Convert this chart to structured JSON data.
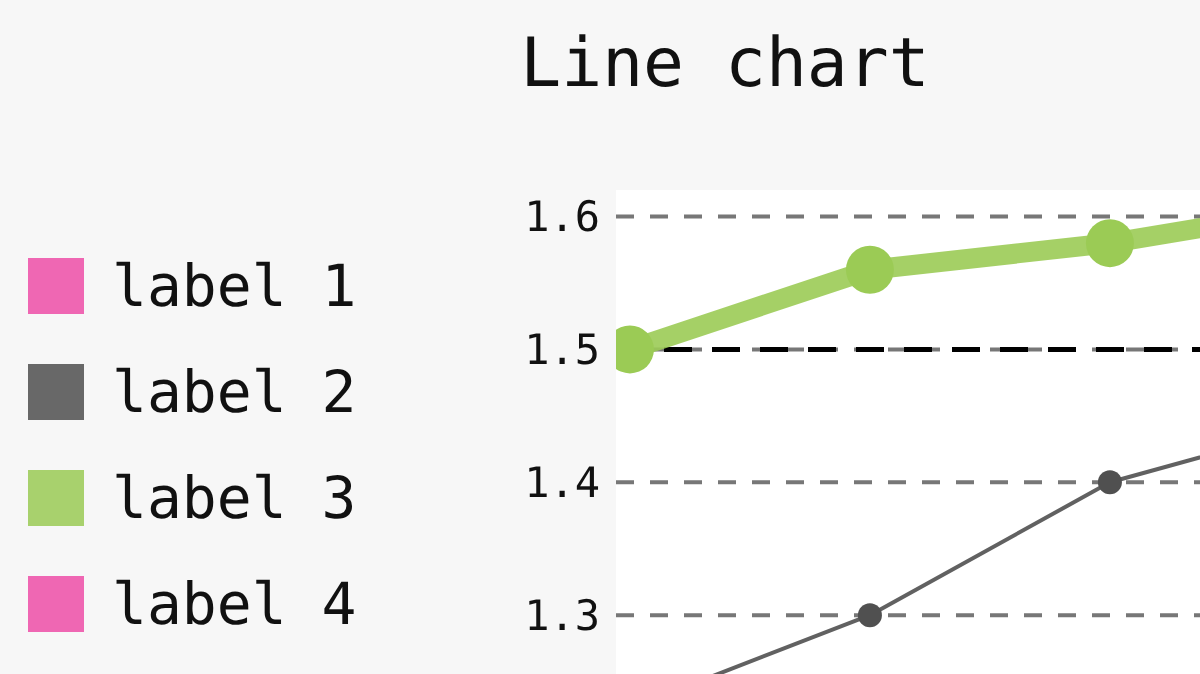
{
  "chart_data": {
    "type": "line",
    "title": "Line chart",
    "categories": [
      null,
      null,
      null,
      null
    ],
    "series": [
      {
        "name": "label 1",
        "color": "#ee4fa8",
        "values": [
          null,
          null,
          null,
          null
        ]
      },
      {
        "name": "label 2",
        "color": "#505050",
        "values": [
          1.23,
          1.3,
          1.4,
          1.45
        ]
      },
      {
        "name": "label 3",
        "color": "#9bcb55",
        "values": [
          1.5,
          1.56,
          1.58,
          1.61
        ]
      },
      {
        "name": "label 4",
        "color": "#ee4fa8",
        "values": [
          null,
          null,
          null,
          null
        ]
      }
    ],
    "ylim": [
      1.2,
      1.62
    ],
    "yticks": [
      1.3,
      1.4,
      1.5,
      1.6
    ],
    "grid": "y",
    "legend": "left",
    "marker": "circle",
    "line_style": "solid",
    "ref_lines": [
      {
        "axis": "y",
        "value": 1.5,
        "color": "#000000",
        "line_style": "dashed"
      }
    ]
  }
}
